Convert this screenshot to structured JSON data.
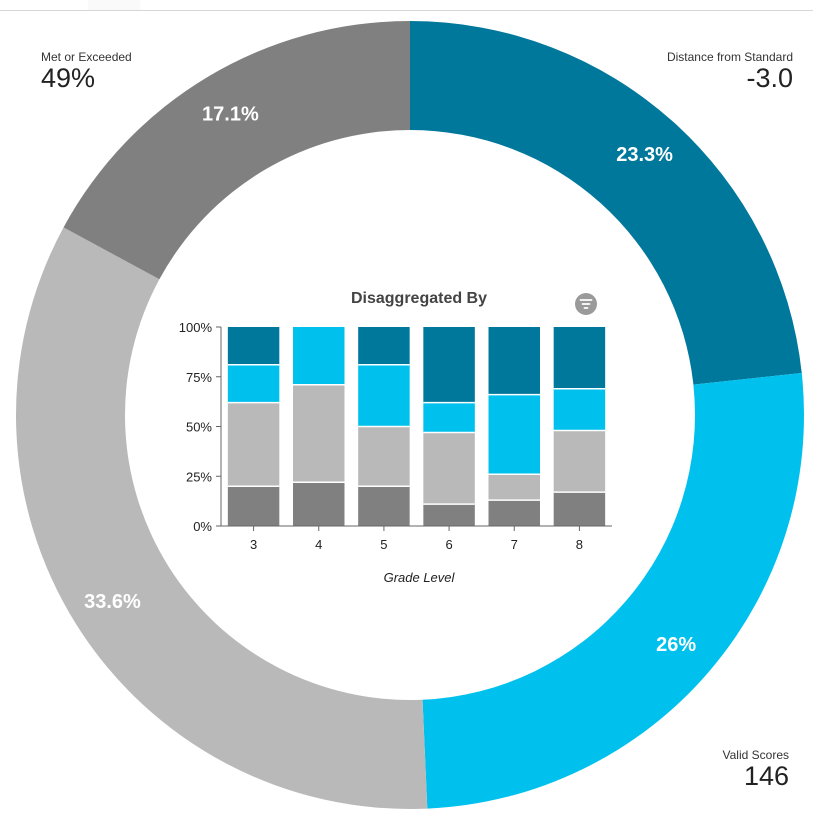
{
  "stats": {
    "top_left": {
      "label": "Met or Exceeded",
      "value": "49%"
    },
    "top_right": {
      "label": "Distance from Standard",
      "value": "-3.0"
    },
    "bottom_right": {
      "label": "Valid Scores",
      "value": "146"
    }
  },
  "icons": {
    "filter": "filter-icon"
  },
  "colors": {
    "dark_gray": "#808080",
    "light_gray": "#b9b9b9",
    "light_blue": "#00c1ee",
    "dark_blue": "#00789c"
  },
  "chart_data": [
    {
      "type": "pie",
      "variant": "donut",
      "slices": [
        {
          "value": 23.3,
          "label": "23.3%",
          "color": "#00789c"
        },
        {
          "value": 26,
          "label": "26%",
          "color": "#00c1ee"
        },
        {
          "value": 33.6,
          "label": "33.6%",
          "color": "#b9b9b9"
        },
        {
          "value": 17.1,
          "label": "17.1%",
          "color": "#808080"
        }
      ],
      "start": "top",
      "direction": "clockwise"
    },
    {
      "type": "bar",
      "stacked": true,
      "title": "Disaggregated By",
      "xlabel": "Grade Level",
      "ylabel": "",
      "categories": [
        "3",
        "4",
        "5",
        "6",
        "7",
        "8"
      ],
      "ylim": [
        0,
        100
      ],
      "yticks": [
        "0%",
        "25%",
        "50%",
        "75%",
        "100%"
      ],
      "ytick_values": [
        0,
        25,
        50,
        75,
        100
      ],
      "grid": false,
      "series": [
        {
          "color": "#808080",
          "values": [
            20,
            22,
            20,
            11,
            13,
            17
          ]
        },
        {
          "color": "#b9b9b9",
          "values": [
            42,
            49,
            30,
            36,
            13,
            31
          ]
        },
        {
          "color": "#00c1ee",
          "values": [
            19,
            29,
            31,
            15,
            40,
            21
          ]
        },
        {
          "color": "#00789c",
          "values": [
            19,
            0,
            19,
            38,
            34,
            31
          ]
        }
      ]
    }
  ]
}
